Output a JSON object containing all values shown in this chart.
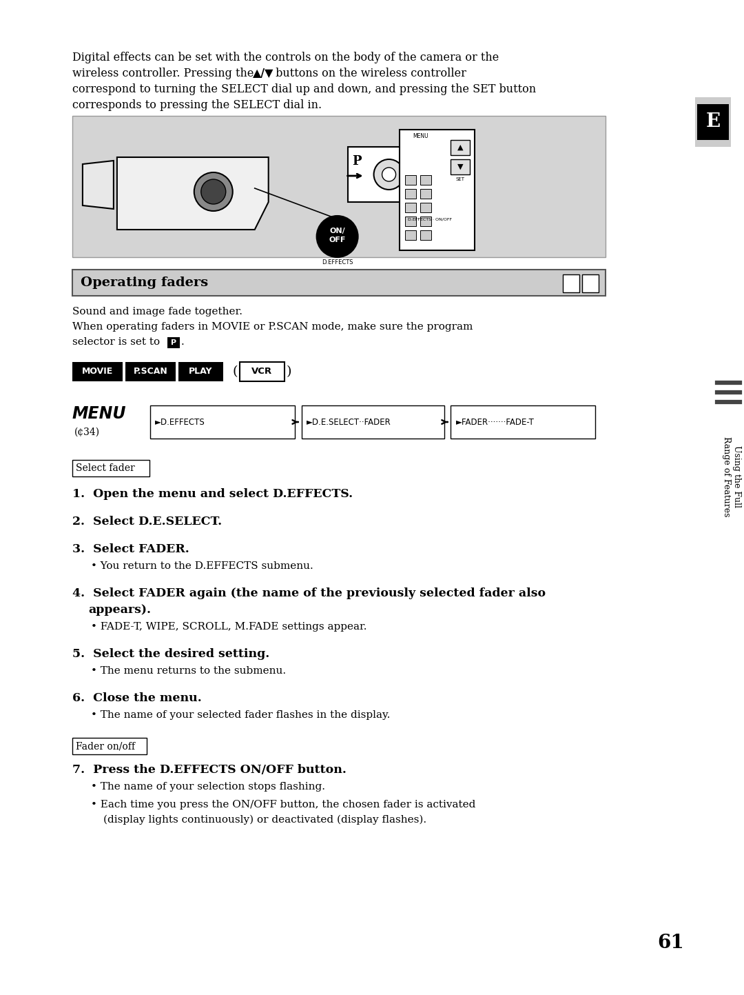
{
  "bg_color": "#ffffff",
  "page_number": "61",
  "tab_letter": "E",
  "intro_line1": "Digital effects can be set with the controls on the body of the camera or the",
  "intro_line2a": "wireless controller. Pressing the ",
  "intro_arrows": "▲/▼",
  "intro_line2b": " buttons on the wireless controller",
  "intro_line3": "correspond to turning the SELECT dial up and down, and pressing the SET button",
  "intro_line4": "corresponds to pressing the SELECT dial in.",
  "section_title": "Operating faders",
  "desc_line1": "Sound and image fade together.",
  "desc_line2": "When operating faders in MOVIE or P.SCAN mode, make sure the program",
  "desc_line3": "selector is set to ",
  "mode_buttons": [
    "MOVIE",
    "P.SCAN",
    "PLAY",
    "VCR"
  ],
  "menu_label": "MENU",
  "menu_sub": "(¢34)",
  "menu_box1": "►D.EFFECTS",
  "menu_box2": "►D.E.SELECT··FADER",
  "menu_box3": "►FADER·······FADE-T",
  "subsection1": "Select fader",
  "subsection2": "Fader on/off",
  "sidebar_text1": "Using the Full",
  "sidebar_text2": "Range of Features",
  "image_bg": "#d4d4d4"
}
